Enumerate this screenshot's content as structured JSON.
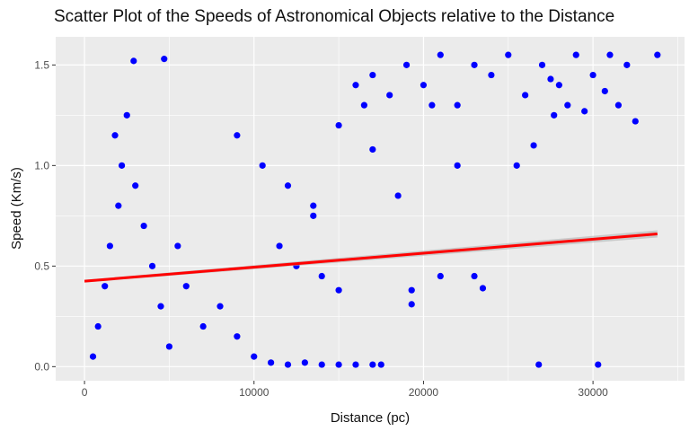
{
  "chart_data": {
    "type": "scatter",
    "title": "Scatter Plot of the Speeds of Astronomical Objects relative to the Distance",
    "xlabel": "Distance (pc)",
    "ylabel": "Speed (Km/s)",
    "xlim": [
      -1700,
      35400
    ],
    "ylim": [
      -0.07,
      1.64
    ],
    "x_ticks": [
      0,
      10000,
      20000,
      30000
    ],
    "x_tick_labels": [
      "0",
      "10000",
      "20000",
      "30000"
    ],
    "y_ticks": [
      0.0,
      0.5,
      1.0,
      1.5
    ],
    "y_tick_labels": [
      "0.0",
      "0.5",
      "1.0",
      "1.5"
    ],
    "grid": true,
    "legend": "none",
    "colors": {
      "points": "#0000ff",
      "trend": "#ff0000",
      "band": "#b3b3b3",
      "panel": "#ebebeb",
      "grid": "#ffffff"
    },
    "series": [
      {
        "kind": "points",
        "points": [
          [
            500,
            0.05
          ],
          [
            800,
            0.2
          ],
          [
            1200,
            0.4
          ],
          [
            1500,
            0.6
          ],
          [
            2000,
            0.8
          ],
          [
            2200,
            1.0
          ],
          [
            1800,
            1.15
          ],
          [
            2500,
            1.25
          ],
          [
            3000,
            0.9
          ],
          [
            3500,
            0.7
          ],
          [
            4000,
            0.5
          ],
          [
            4500,
            0.3
          ],
          [
            5000,
            0.1
          ],
          [
            5500,
            0.6
          ],
          [
            6000,
            0.4
          ],
          [
            7000,
            0.2
          ],
          [
            8000,
            0.3
          ],
          [
            9000,
            0.15
          ],
          [
            10000,
            0.05
          ],
          [
            11000,
            0.02
          ],
          [
            12000,
            0.01
          ],
          [
            13000,
            0.02
          ],
          [
            14000,
            0.01
          ],
          [
            15000,
            0.01
          ],
          [
            16000,
            0.01
          ],
          [
            17000,
            0.01
          ],
          [
            17500,
            0.01
          ],
          [
            2900,
            1.52
          ],
          [
            4700,
            1.53
          ],
          [
            9000,
            1.15
          ],
          [
            10500,
            1.0
          ],
          [
            12000,
            0.9
          ],
          [
            13500,
            0.8
          ],
          [
            11500,
            0.6
          ],
          [
            12500,
            0.5
          ],
          [
            14000,
            0.45
          ],
          [
            15000,
            0.38
          ],
          [
            16000,
            1.4
          ],
          [
            16500,
            1.3
          ],
          [
            17000,
            1.45
          ],
          [
            18000,
            1.35
          ],
          [
            19000,
            1.5
          ],
          [
            20000,
            1.4
          ],
          [
            21000,
            1.55
          ],
          [
            22000,
            1.3
          ],
          [
            23000,
            1.5
          ],
          [
            24000,
            1.45
          ],
          [
            25000,
            1.55
          ],
          [
            26000,
            1.35
          ],
          [
            27000,
            1.5
          ],
          [
            28000,
            1.4
          ],
          [
            29000,
            1.55
          ],
          [
            30000,
            1.45
          ],
          [
            31000,
            1.55
          ],
          [
            32000,
            1.5
          ],
          [
            33800,
            1.55
          ],
          [
            32500,
            1.22
          ],
          [
            31500,
            1.3
          ],
          [
            30700,
            1.37
          ],
          [
            29500,
            1.27
          ],
          [
            28500,
            1.3
          ],
          [
            27500,
            1.43
          ],
          [
            25500,
            1.0
          ],
          [
            26500,
            1.1
          ],
          [
            27700,
            1.25
          ],
          [
            23000,
            0.45
          ],
          [
            21000,
            0.45
          ],
          [
            19300,
            0.38
          ],
          [
            19300,
            0.31
          ],
          [
            23500,
            0.39
          ],
          [
            13500,
            0.75
          ],
          [
            26800,
            0.01
          ],
          [
            30300,
            0.01
          ],
          [
            18500,
            0.85
          ],
          [
            17000,
            1.08
          ],
          [
            22000,
            1.0
          ],
          [
            20500,
            1.3
          ],
          [
            15000,
            1.2
          ]
        ]
      },
      {
        "kind": "trend",
        "name": "",
        "line": [
          [
            0,
            0.425
          ],
          [
            33800,
            0.66
          ]
        ]
      }
    ]
  }
}
